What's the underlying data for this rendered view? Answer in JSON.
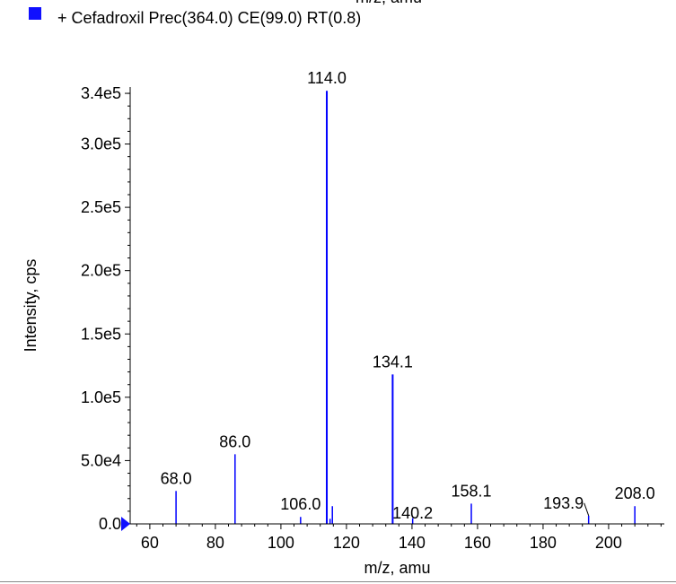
{
  "legend": {
    "label": "+ Cefadroxil Prec(364.0) CE(99.0) RT(0.8)",
    "swatch_color": "#1010ff"
  },
  "top_cut_label": "m/z, amu",
  "chart_data": {
    "type": "bar",
    "title": "",
    "xlabel": "m/z, amu",
    "ylabel": "Intensity, cps",
    "xlim": [
      54,
      217
    ],
    "ylim": [
      0,
      345000
    ],
    "x_ticks": [
      60,
      80,
      100,
      120,
      140,
      160,
      180,
      200
    ],
    "x_tick_labels": [
      "60",
      "80",
      "100",
      "120",
      "140",
      "160",
      "180",
      "200"
    ],
    "y_ticks": [
      0,
      50000,
      100000,
      150000,
      200000,
      250000,
      300000,
      340000
    ],
    "y_tick_labels": [
      "0.0",
      "5.0e4",
      "1.0e5",
      "1.5e5",
      "2.0e5",
      "2.5e5",
      "3.0e5",
      "3.4e5"
    ],
    "series_color": "#0000ff",
    "peaks": [
      {
        "x": 68.0,
        "y": 26000,
        "label": "68.0"
      },
      {
        "x": 86.0,
        "y": 55000,
        "label": "86.0"
      },
      {
        "x": 106.0,
        "y": 5500,
        "label": "106.0"
      },
      {
        "x": 114.0,
        "y": 342000,
        "label": "114.0"
      },
      {
        "x": 115.0,
        "y": 4000,
        "label": ""
      },
      {
        "x": 115.7,
        "y": 14000,
        "label": ""
      },
      {
        "x": 134.1,
        "y": 118000,
        "label": "134.1"
      },
      {
        "x": 140.2,
        "y": 4500,
        "label": "140.2"
      },
      {
        "x": 158.1,
        "y": 16000,
        "label": "158.1"
      },
      {
        "x": 193.9,
        "y": 6500,
        "label": "193.9"
      },
      {
        "x": 208.0,
        "y": 14000,
        "label": "208.0"
      }
    ]
  }
}
